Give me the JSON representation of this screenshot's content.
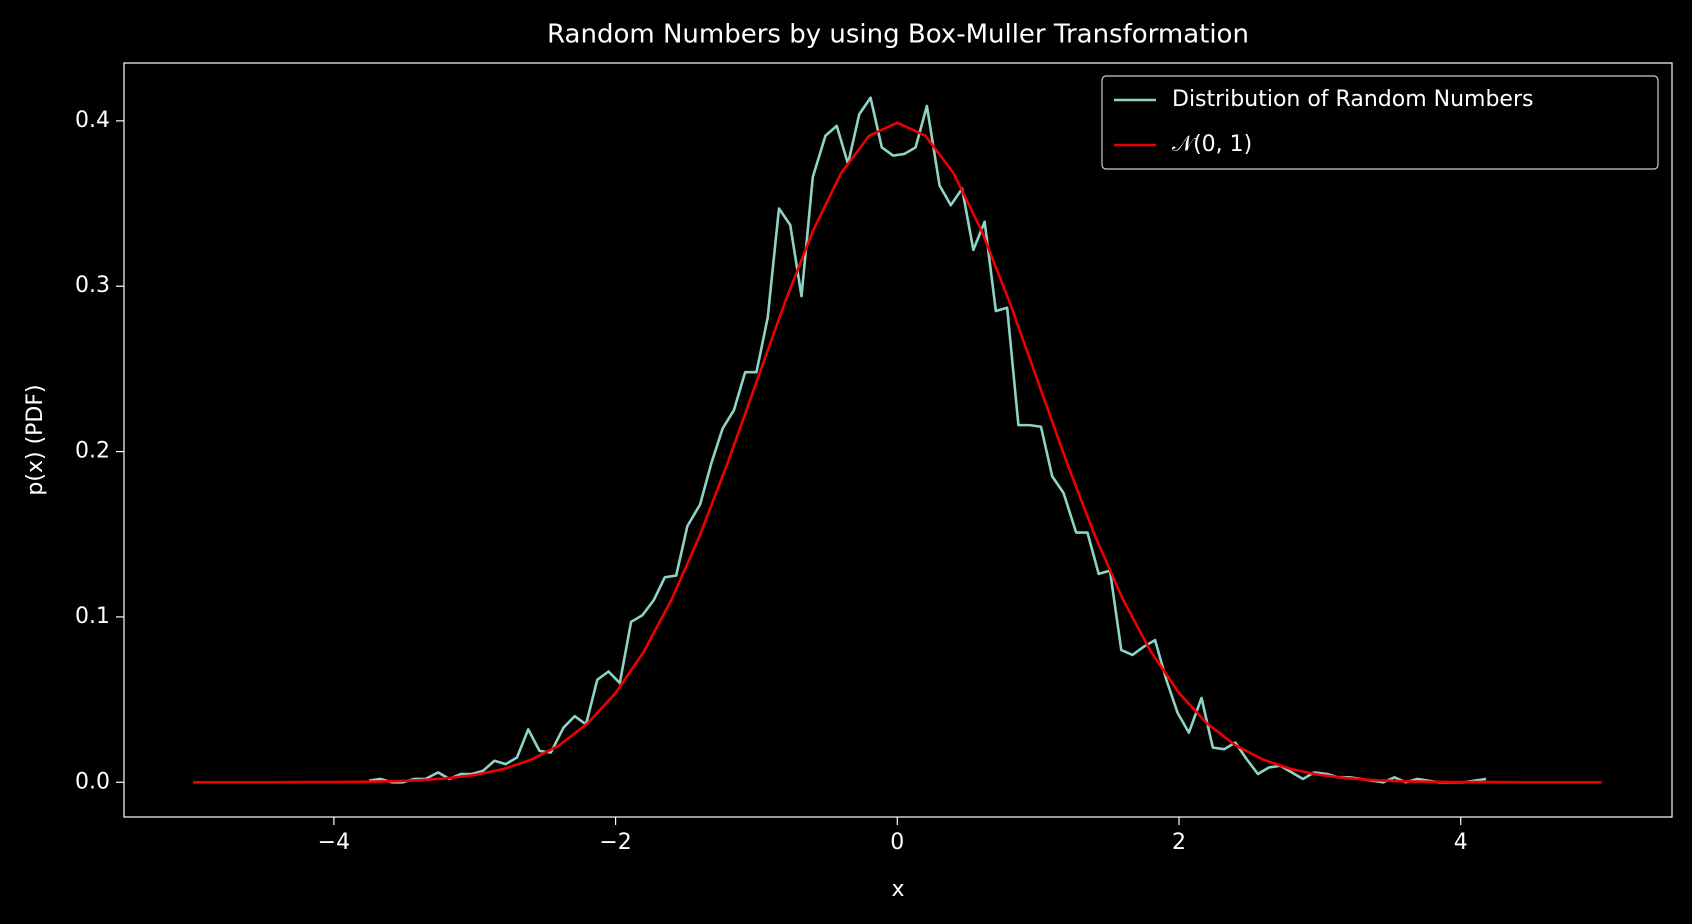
{
  "chart_data": {
    "type": "line",
    "title": "Random Numbers by using Box-Muller Transformation",
    "xlabel": "x",
    "ylabel": "p(x) (PDF)",
    "xlim": [
      -5.49,
      5.5
    ],
    "ylim": [
      -0.021,
      0.435
    ],
    "xticks": [
      {
        "value": -4,
        "label": "−4"
      },
      {
        "value": -2,
        "label": "−2"
      },
      0,
      2,
      4
    ],
    "yticks": [
      {
        "value": 0,
        "label": "0.0"
      },
      0.1,
      0.2,
      0.3,
      0.4
    ],
    "legend": "upper right",
    "series": [
      {
        "name": "Distribution of Random Numbers",
        "color": "#8dd3c7",
        "x": [
          -3.75,
          -3.67,
          -3.59,
          -3.51,
          -3.43,
          -3.35,
          -3.26,
          -3.18,
          -3.1,
          -3.02,
          -2.94,
          -2.86,
          -2.78,
          -2.7,
          -2.62,
          -2.54,
          -2.46,
          -2.37,
          -2.29,
          -2.21,
          -2.13,
          -2.05,
          -1.97,
          -1.89,
          -1.81,
          -1.73,
          -1.65,
          -1.57,
          -1.49,
          -1.4,
          -1.32,
          -1.24,
          -1.16,
          -1.08,
          -1.0,
          -0.92,
          -0.84,
          -0.76,
          -0.68,
          -0.6,
          -0.51,
          -0.43,
          -0.35,
          -0.27,
          -0.19,
          -0.11,
          -0.03,
          0.05,
          0.13,
          0.21,
          0.3,
          0.38,
          0.46,
          0.54,
          0.62,
          0.7,
          0.78,
          0.86,
          0.94,
          1.02,
          1.1,
          1.18,
          1.27,
          1.35,
          1.43,
          1.51,
          1.59,
          1.67,
          1.75,
          1.83,
          1.91,
          1.99,
          2.07,
          2.16,
          2.24,
          2.32,
          2.4,
          2.48,
          2.56,
          2.64,
          2.72,
          2.8,
          2.88,
          2.96,
          3.05,
          3.13,
          3.21,
          3.29,
          3.37,
          3.45,
          3.53,
          3.61,
          3.69,
          3.77,
          3.85,
          3.94,
          4.02,
          4.1,
          4.18
        ],
        "values": [
          0.001,
          0.002,
          0.0,
          0.0,
          0.002,
          0.002,
          0.006,
          0.002,
          0.005,
          0.005,
          0.007,
          0.013,
          0.011,
          0.015,
          0.032,
          0.019,
          0.018,
          0.033,
          0.04,
          0.035,
          0.062,
          0.067,
          0.06,
          0.097,
          0.101,
          0.11,
          0.124,
          0.125,
          0.155,
          0.168,
          0.193,
          0.214,
          0.225,
          0.248,
          0.248,
          0.281,
          0.347,
          0.337,
          0.294,
          0.366,
          0.391,
          0.397,
          0.374,
          0.404,
          0.414,
          0.384,
          0.379,
          0.38,
          0.384,
          0.409,
          0.361,
          0.349,
          0.359,
          0.322,
          0.339,
          0.285,
          0.287,
          0.216,
          0.216,
          0.215,
          0.185,
          0.175,
          0.151,
          0.151,
          0.126,
          0.128,
          0.08,
          0.077,
          0.082,
          0.086,
          0.062,
          0.042,
          0.03,
          0.051,
          0.021,
          0.02,
          0.024,
          0.014,
          0.005,
          0.009,
          0.01,
          0.006,
          0.002,
          0.006,
          0.005,
          0.003,
          0.003,
          0.002,
          0.001,
          0.0,
          0.003,
          0.0,
          0.002,
          0.001,
          0.0,
          0.0,
          0.0,
          0.001,
          0.002
        ]
      },
      {
        "name": "𝒩(0, 1)",
        "color": "#ee0000",
        "x": [
          -5,
          -4.8,
          -4.6,
          -4.4,
          -4.2,
          -4,
          -3.8,
          -3.6,
          -3.4,
          -3.2,
          -3,
          -2.8,
          -2.6,
          -2.4,
          -2.2,
          -2,
          -1.8,
          -1.6,
          -1.4,
          -1.2,
          -1,
          -0.8,
          -0.6,
          -0.4,
          -0.2,
          0,
          0.2,
          0.4,
          0.6,
          0.8,
          1,
          1.2,
          1.4,
          1.6,
          1.8,
          2,
          2.2,
          2.4,
          2.6,
          2.8,
          3,
          3.2,
          3.4,
          3.6,
          3.8,
          4,
          4.2,
          4.4,
          4.6,
          4.8,
          5
        ],
        "values": [
          0,
          0,
          0,
          0,
          0.0001,
          0.0001,
          0.0003,
          0.0006,
          0.0012,
          0.0024,
          0.0044,
          0.0079,
          0.0136,
          0.0224,
          0.0355,
          0.054,
          0.079,
          0.1109,
          0.1497,
          0.1942,
          0.242,
          0.2897,
          0.3332,
          0.3683,
          0.391,
          0.3989,
          0.391,
          0.3683,
          0.3332,
          0.2897,
          0.242,
          0.1942,
          0.1497,
          0.1109,
          0.079,
          0.054,
          0.0355,
          0.0224,
          0.0136,
          0.0079,
          0.0044,
          0.0024,
          0.0012,
          0.0006,
          0.0003,
          0.0001,
          0.0001,
          0,
          0,
          0,
          0
        ]
      }
    ]
  }
}
